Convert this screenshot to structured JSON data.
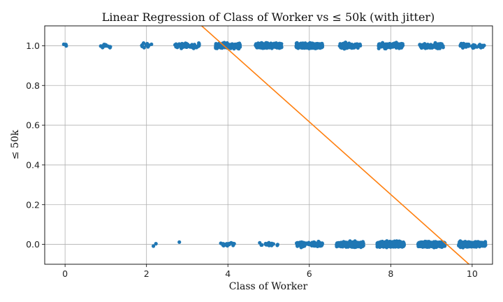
{
  "chart_data": {
    "type": "scatter",
    "title": "Linear Regression of Class of Worker vs ≤ 50k (with jitter)",
    "xlabel": "Class of Worker",
    "ylabel": "≤ 50k",
    "xlim": [
      -0.5,
      10.5
    ],
    "ylim": [
      -0.1,
      1.1
    ],
    "xticks": [
      0,
      2,
      4,
      6,
      8,
      10
    ],
    "xtick_labels": [
      "0",
      "2",
      "4",
      "6",
      "8",
      "10"
    ],
    "yticks": [
      0.0,
      0.2,
      0.4,
      0.6,
      0.8,
      1.0
    ],
    "ytick_labels": [
      "0.0",
      "0.2",
      "0.4",
      "0.6",
      "0.8",
      "1.0"
    ],
    "grid": true,
    "colors": {
      "points": "#1f77b4",
      "fit_line": "#ff7f0e",
      "grid": "#b0b0b0"
    },
    "series": [
      {
        "kind": "scatter",
        "clusters": [
          {
            "x": 0.0,
            "y": 1.0,
            "spread": 0.06,
            "count": 4
          },
          {
            "x": 1.0,
            "y": 1.0,
            "spread": 0.16,
            "count": 12
          },
          {
            "x": 2.0,
            "y": 1.0,
            "spread": 0.2,
            "count": 14
          },
          {
            "x": 3.0,
            "y": 1.0,
            "spread": 0.3,
            "count": 70
          },
          {
            "x": 4.0,
            "y": 1.0,
            "spread": 0.3,
            "count": 220
          },
          {
            "x": 5.0,
            "y": 1.0,
            "spread": 0.32,
            "count": 360
          },
          {
            "x": 6.0,
            "y": 1.0,
            "spread": 0.32,
            "count": 420
          },
          {
            "x": 7.0,
            "y": 1.0,
            "spread": 0.26,
            "count": 90
          },
          {
            "x": 8.0,
            "y": 1.0,
            "spread": 0.3,
            "count": 120
          },
          {
            "x": 9.0,
            "y": 1.0,
            "spread": 0.3,
            "count": 90
          },
          {
            "x": 10.0,
            "y": 1.0,
            "spread": 0.3,
            "count": 40
          },
          {
            "x": 2.2,
            "y": 0.0,
            "spread": 0.04,
            "count": 2
          },
          {
            "x": 2.8,
            "y": 0.0,
            "spread": 0.02,
            "count": 1
          },
          {
            "x": 4.0,
            "y": 0.0,
            "spread": 0.2,
            "count": 20
          },
          {
            "x": 5.0,
            "y": 0.0,
            "spread": 0.25,
            "count": 18
          },
          {
            "x": 6.0,
            "y": 0.0,
            "spread": 0.32,
            "count": 90
          },
          {
            "x": 7.0,
            "y": 0.0,
            "spread": 0.33,
            "count": 420
          },
          {
            "x": 8.0,
            "y": 0.0,
            "spread": 0.33,
            "count": 650
          },
          {
            "x": 9.0,
            "y": 0.0,
            "spread": 0.33,
            "count": 500
          },
          {
            "x": 10.0,
            "y": 0.0,
            "spread": 0.33,
            "count": 420
          }
        ]
      },
      {
        "kind": "line",
        "x": [
          -0.5,
          10.5
        ],
        "y": [
          1.8046,
          -0.2054
        ]
      }
    ]
  }
}
